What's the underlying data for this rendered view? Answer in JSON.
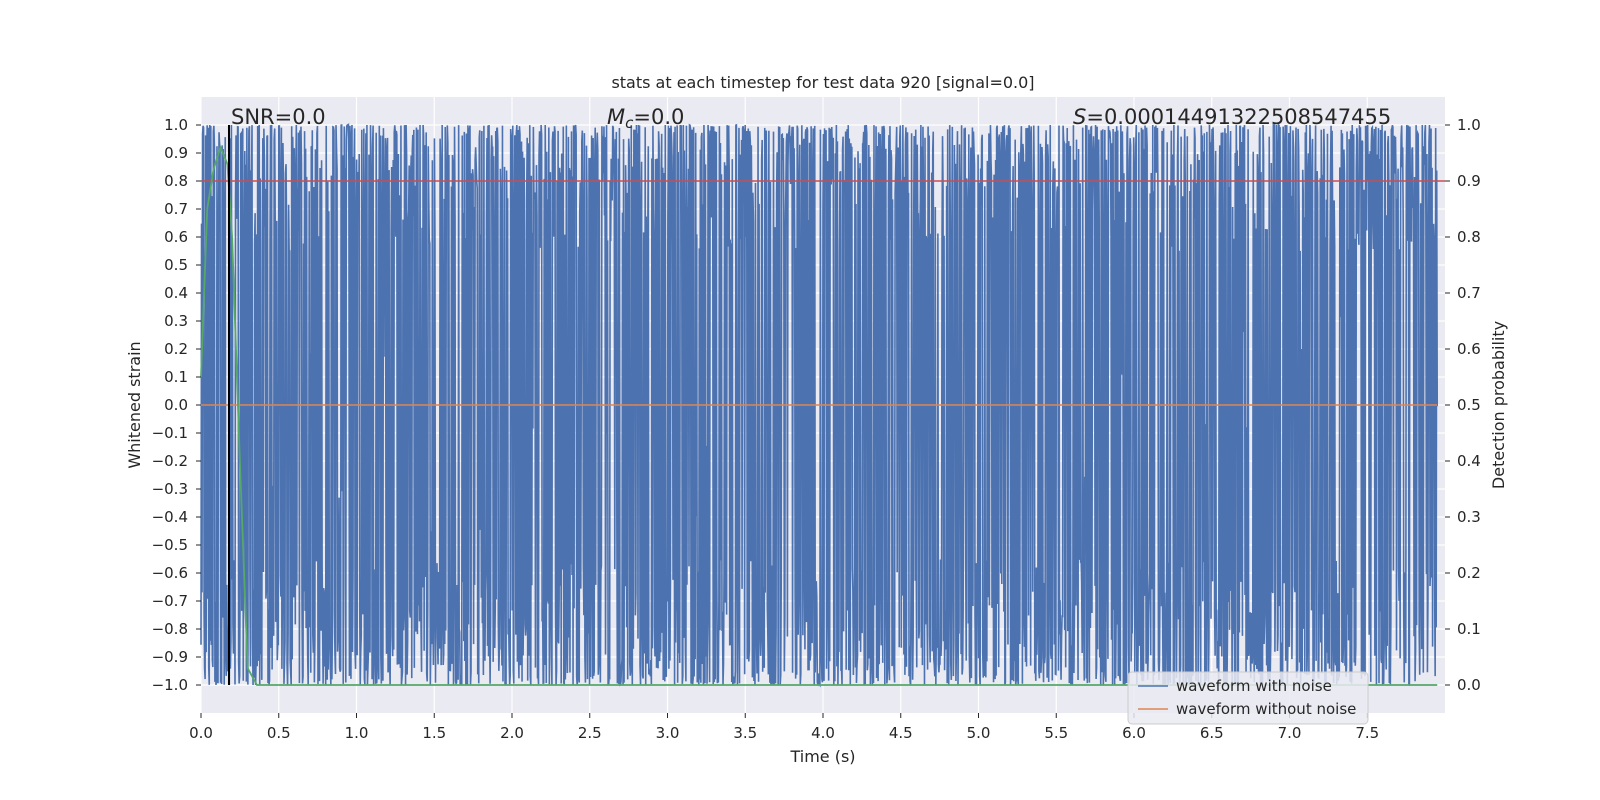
{
  "chart_data": {
    "type": "line",
    "title": "stats at each timestep for test data 920 [signal=0.0]",
    "xlabel": "Time (s)",
    "ylabel": "Whitened strain",
    "y2label": "Detection probability",
    "xlim": [
      0.0,
      8.0
    ],
    "ylim": [
      -1.1,
      1.1
    ],
    "y2lim": [
      -0.05,
      1.05
    ],
    "xticks": [
      "0.0",
      "0.5",
      "1.0",
      "1.5",
      "2.0",
      "2.5",
      "3.0",
      "3.5",
      "4.0",
      "4.5",
      "5.0",
      "5.5",
      "6.0",
      "6.5",
      "7.0",
      "7.5"
    ],
    "yticks": [
      "1.0",
      "0.9",
      "0.8",
      "0.7",
      "0.6",
      "0.5",
      "0.4",
      "0.3",
      "0.2",
      "0.1",
      "0.0",
      "−0.1",
      "−0.2",
      "−0.3",
      "−0.4",
      "−0.5",
      "−0.6",
      "−0.7",
      "−0.8",
      "−0.9",
      "−1.0"
    ],
    "y2ticks": [
      "1.0",
      "0.9",
      "0.8",
      "0.7",
      "0.6",
      "0.5",
      "0.4",
      "0.3",
      "0.2",
      "0.1",
      "0.0"
    ],
    "grid": true,
    "legend_location": "lower right",
    "annotations": {
      "snr_prefix": "SNR=",
      "snr_value": "0.0",
      "mc_symbol": "M",
      "mc_subscript": "c",
      "mc_value": "=0.0",
      "s_symbol": "S",
      "s_value": "=0.00014491322508547455"
    },
    "series": [
      {
        "name": "waveform with noise",
        "color": "#4c72b0",
        "axis": "left",
        "description_range": [
          -1.0,
          1.0
        ]
      },
      {
        "name": "waveform without noise",
        "color": "#dd8452",
        "axis": "left",
        "x": [
          0.0,
          7.95
        ],
        "y": [
          0.0,
          0.0
        ]
      },
      {
        "name": "",
        "color": "#55a868",
        "axis": "right",
        "x": [
          0.0,
          0.04,
          0.08,
          0.125,
          0.17,
          0.2,
          0.25,
          0.3,
          0.36,
          0.5,
          1.0,
          2.0,
          4.0,
          6.0,
          7.95
        ],
        "y": [
          0.55,
          0.85,
          0.92,
          0.96,
          0.93,
          0.8,
          0.4,
          0.03,
          0.0,
          0.0,
          0.0,
          0.0,
          0.0,
          0.0,
          0.0
        ]
      }
    ],
    "horizontal_line": {
      "axis": "right",
      "value": 0.9,
      "color": "#c44e52"
    },
    "vertical_line": {
      "x": 0.18,
      "color": "#000000"
    }
  }
}
